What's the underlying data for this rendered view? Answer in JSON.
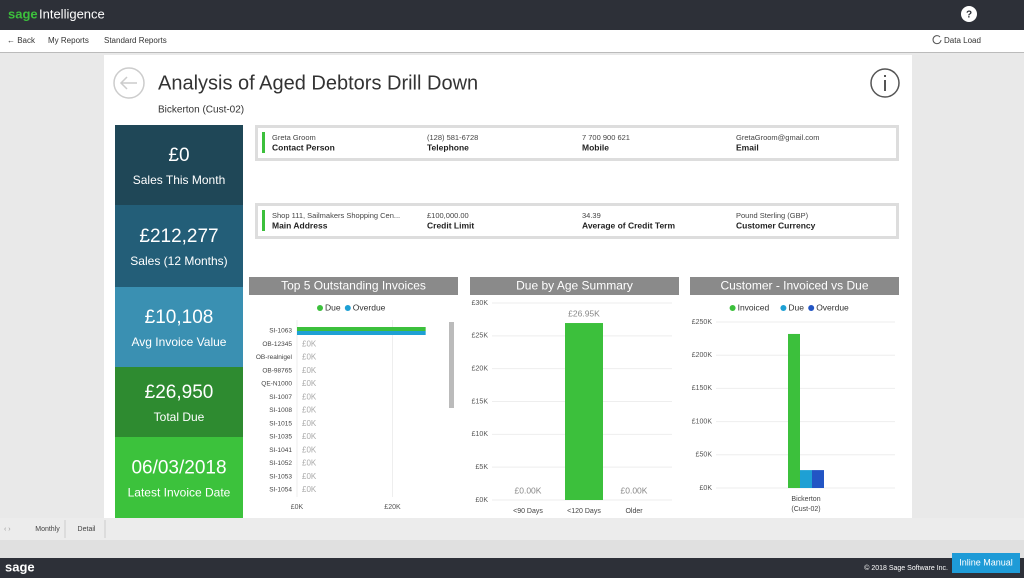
{
  "header": {
    "logo_brand": "sage",
    "logo_product": "Intelligence",
    "help": "?"
  },
  "nav": {
    "back": "← Back",
    "items": [
      "My Reports",
      "Standard Reports"
    ],
    "data_load": "Data Load"
  },
  "report": {
    "title": "Analysis of Aged Debtors Drill Down",
    "subtitle": "Bickerton (Cust-02)"
  },
  "kpis": [
    {
      "value": "£0",
      "label": "Sales This Month"
    },
    {
      "value": "£212,277",
      "label": "Sales (12 Months)"
    },
    {
      "value": "£10,108",
      "label": "Avg Invoice Value"
    },
    {
      "value": "£26,950",
      "label": "Total Due"
    },
    {
      "value": "06/03/2018",
      "label": "Latest Invoice Date"
    }
  ],
  "contact": [
    {
      "value": "Greta Groom",
      "label": "Contact Person"
    },
    {
      "value": "(128) 581-6728",
      "label": "Telephone"
    },
    {
      "value": "7 700 900 621",
      "label": "Mobile"
    },
    {
      "value": "GretaGroom@gmail.com",
      "label": "Email"
    }
  ],
  "address": [
    {
      "value": "Shop 111, Sailmakers Shopping Cen...",
      "label": "Main Address"
    },
    {
      "value": "£100,000.00",
      "label": "Credit Limit"
    },
    {
      "value": "34.39",
      "label": "Average of Credit Term"
    },
    {
      "value": "Pound Sterling (GBP)",
      "label": "Customer Currency"
    }
  ],
  "charts": [
    {
      "type": "hbar",
      "title": "Top 5 Outstanding Invoices",
      "categories": [
        "SI-1063",
        "OB-12345",
        "OB-realnigel",
        "OB-98765",
        "QE-N1000",
        "SI-1007",
        "SI-1008",
        "SI-1015",
        "SI-1035",
        "SI-1041",
        "SI-1052",
        "SI-1053",
        "SI-1054"
      ],
      "series": [
        {
          "name": "Due",
          "color": "#3cc03c",
          "values": [
            26950,
            0,
            0,
            0,
            0,
            0,
            0,
            0,
            0,
            0,
            0,
            0,
            0
          ],
          "value_labels": [
            null,
            "£0K",
            "£0K",
            "£0K",
            "£0K",
            "£0K",
            "£0K",
            "£0K",
            "£0K",
            "£0K",
            "£0K",
            "£0K",
            "£0K"
          ]
        },
        {
          "name": "Overdue",
          "color": "#1ea0d4",
          "values": [
            26950,
            0,
            0,
            0,
            0,
            0,
            0,
            0,
            0,
            0,
            0,
            0,
            0
          ]
        }
      ],
      "xlim": [
        0,
        31000
      ],
      "xticks": [
        {
          "value": 0,
          "label": "£0K"
        },
        {
          "value": 20000,
          "label": "£20K"
        }
      ]
    },
    {
      "type": "bar",
      "title": "Due by Age Summary",
      "categories": [
        "<90 Days",
        "<120 Days",
        "Older"
      ],
      "values": [
        0,
        26950,
        0
      ],
      "value_labels": [
        "£0.00K",
        "£26.95K",
        "£0.00K"
      ],
      "color": "#3cc03c",
      "ylim": [
        0,
        30000
      ],
      "yticks": [
        {
          "value": 0,
          "label": "£0K"
        },
        {
          "value": 5000,
          "label": "£5K"
        },
        {
          "value": 10000,
          "label": "£10K"
        },
        {
          "value": 15000,
          "label": "£15K"
        },
        {
          "value": 20000,
          "label": "£20K"
        },
        {
          "value": 25000,
          "label": "£25K"
        },
        {
          "value": 30000,
          "label": "£30K"
        }
      ]
    },
    {
      "type": "grouped_bar",
      "title": "Customer - Invoiced vs Due",
      "categories": [
        [
          "Bickerton",
          "(Cust-02)"
        ]
      ],
      "series": [
        {
          "name": "Invoiced",
          "color": "#3cc03c",
          "values": [
            232000
          ]
        },
        {
          "name": "Due",
          "color": "#1ea0d4",
          "values": [
            26950
          ]
        },
        {
          "name": "Overdue",
          "color": "#2255c4",
          "values": [
            26950
          ]
        }
      ],
      "ylim": [
        0,
        250000
      ],
      "yticks": [
        {
          "value": 0,
          "label": "£0K"
        },
        {
          "value": 50000,
          "label": "£50K"
        },
        {
          "value": 100000,
          "label": "£100K"
        },
        {
          "value": 150000,
          "label": "£150K"
        },
        {
          "value": 200000,
          "label": "£200K"
        },
        {
          "value": 250000,
          "label": "£250K"
        }
      ]
    }
  ],
  "tabs": [
    "Monthly",
    "Detail"
  ],
  "footer": {
    "brand": "sage",
    "copyright": "© 2018 Sage Software Inc.",
    "button": "Inline Manual"
  }
}
